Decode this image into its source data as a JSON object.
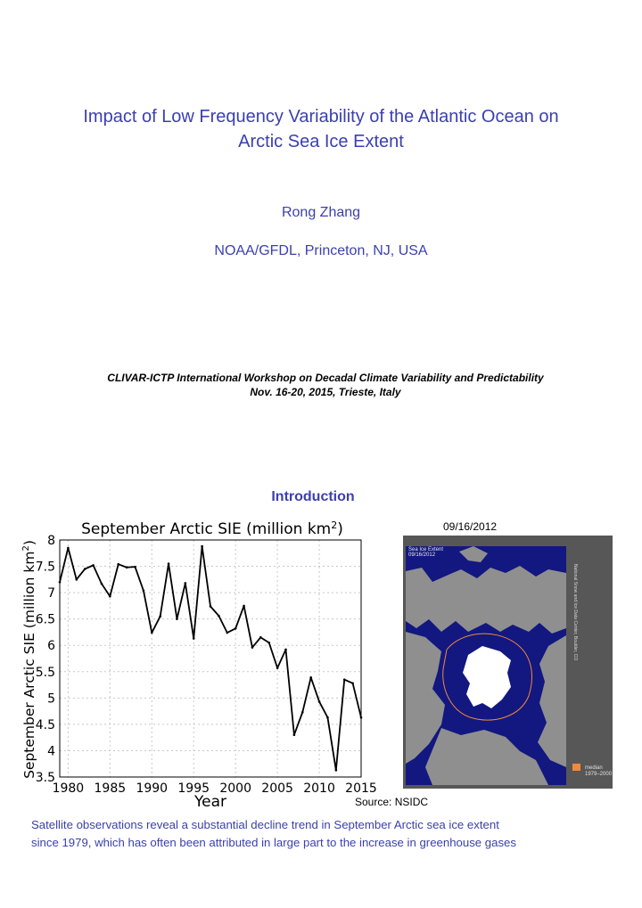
{
  "header": {
    "title_line1": "Impact of Low Frequency Variability of the Atlantic Ocean on",
    "title_line2": "Arctic Sea Ice Extent",
    "author": "Rong Zhang",
    "affiliation": "NOAA/GFDL, Princeton, NJ, USA",
    "workshop_line1": "CLIVAR-ICTP International Workshop on Decadal Climate Variability and Predictability",
    "workshop_line2": "Nov. 16-20, 2015, Trieste, Italy"
  },
  "section": {
    "title": "Introduction"
  },
  "chart_data": {
    "type": "line",
    "title": "September Arctic SIE (million km",
    "title_superscript": "2",
    "title_suffix": ")",
    "xlabel": "Year",
    "ylabel": "September Arctic SIE (million km",
    "ylabel_superscript": "2",
    "ylabel_suffix": ")",
    "xlim": [
      1979,
      2015
    ],
    "ylim": [
      3.5,
      8
    ],
    "xticks": [
      "1980",
      "1985",
      "1990",
      "1995",
      "2000",
      "2005",
      "2010",
      "2015"
    ],
    "xtick_values": [
      1980,
      1985,
      1990,
      1995,
      2000,
      2005,
      2010,
      2015
    ],
    "yticks": [
      "3.5",
      "4",
      "4.5",
      "5",
      "5.5",
      "6",
      "6.5",
      "7",
      "7.5",
      "8"
    ],
    "ytick_values": [
      3.5,
      4,
      4.5,
      5,
      5.5,
      6,
      6.5,
      7,
      7.5,
      8
    ],
    "grid": true,
    "x": [
      1979,
      1980,
      1981,
      1982,
      1983,
      1984,
      1985,
      1986,
      1987,
      1988,
      1989,
      1990,
      1991,
      1992,
      1993,
      1994,
      1995,
      1996,
      1997,
      1998,
      1999,
      2000,
      2001,
      2002,
      2003,
      2004,
      2005,
      2006,
      2007,
      2008,
      2009,
      2010,
      2011,
      2012,
      2013,
      2014,
      2015
    ],
    "values": [
      7.2,
      7.85,
      7.25,
      7.45,
      7.52,
      7.17,
      6.93,
      7.54,
      7.48,
      7.49,
      7.04,
      6.24,
      6.55,
      7.55,
      6.5,
      7.18,
      6.13,
      7.88,
      6.74,
      6.56,
      6.24,
      6.32,
      6.75,
      5.96,
      6.15,
      6.05,
      5.57,
      5.92,
      4.3,
      4.73,
      5.39,
      4.93,
      4.63,
      3.63,
      5.35,
      5.28,
      4.63
    ],
    "line_color": "#000000"
  },
  "map": {
    "date": "09/16/2012",
    "label_line1": "Sea Ice Extent",
    "label_line2": "09/16/2012",
    "credit": "National Snow and Ice Data Center, Boulder, CO",
    "legend_label": "median",
    "legend_range": "1979–2000",
    "colors": {
      "ocean": "#131780",
      "land": "#8f8f8f",
      "ice": "#ffffff",
      "median_line": "#f2893a",
      "frame": "#575757"
    }
  },
  "source": "Source: NSIDC",
  "caption": {
    "line1": "Satellite observations reveal a substantial decline trend in September Arctic sea ice extent",
    "line2": "since 1979, which has often been attributed in large part to the increase in greenhouse gases"
  }
}
